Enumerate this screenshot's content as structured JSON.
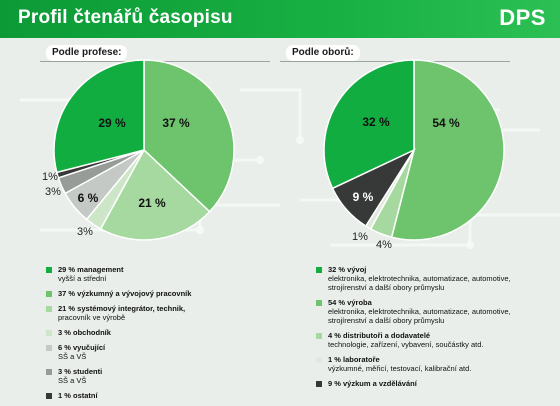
{
  "header": {
    "title": "Profil čtenářů časopisu",
    "brand": "DPS"
  },
  "colors": {
    "header_green": "#13a63c",
    "dark_green": "#12ad40",
    "mid_green": "#6dc46d",
    "light_green": "#a6d9a0",
    "pale_green": "#cde6c8",
    "light_gray": "#c4c9c5",
    "mid_gray": "#979c98",
    "dark_gray": "#5c605d",
    "darker_gray": "#363937"
  },
  "chart_data": [
    {
      "type": "pie",
      "title": "Podle profese:",
      "slices": [
        {
          "label_pct": "37 %",
          "value": 37,
          "color": "#6dc46d",
          "heading": "37 % výzkumný a vývojový pracovník",
          "desc": ""
        },
        {
          "label_pct": "21 %",
          "value": 21,
          "color": "#a6d9a0",
          "heading": "21 % systémový integrátor, technik,",
          "desc": "pracovník ve výrobě"
        },
        {
          "label_pct": "3%",
          "value": 3,
          "color": "#cde6c8",
          "heading": "3 % obchodník",
          "desc": ""
        },
        {
          "label_pct": "6 %",
          "value": 6,
          "color": "#c4c9c5",
          "heading": "6 % vyučující",
          "desc": "SŠ a VŠ"
        },
        {
          "label_pct": "3%",
          "value": 3,
          "color": "#979c98",
          "heading": "3 % studenti",
          "desc": "SŠ a VŠ"
        },
        {
          "label_pct": "1%",
          "value": 1,
          "color": "#363937",
          "heading": "1 % ostatní",
          "desc": ""
        },
        {
          "label_pct": "29 %",
          "value": 29,
          "color": "#12ad40",
          "heading": "29 % management",
          "desc": "vyšší a střední"
        }
      ],
      "legend_order": [
        6,
        0,
        1,
        2,
        3,
        4,
        5
      ]
    },
    {
      "type": "pie",
      "title": "Podle oborů:",
      "slices": [
        {
          "label_pct": "54 %",
          "value": 54,
          "color": "#6dc46d",
          "heading": "54 % výroba",
          "desc": "elektronika, elektrotechnika, automatizace, automotive, strojírenství a další obory průmyslu"
        },
        {
          "label_pct": "4%",
          "value": 4,
          "color": "#a6d9a0",
          "heading": "4 % distributoři a dodavatelé",
          "desc": "technologie, zařízení, vybavení, součástky atd."
        },
        {
          "label_pct": "1%",
          "value": 1,
          "color": "#dfe9dc",
          "heading": "1 % laboratoře",
          "desc": "výzkumné, měřicí, testovací, kalibrační atd."
        },
        {
          "label_pct": "9 %",
          "value": 9,
          "color": "#363937",
          "heading": "9 % výzkum a vzdělávání",
          "desc": ""
        },
        {
          "label_pct": "32 %",
          "value": 32,
          "color": "#12ad40",
          "heading": "32 % vývoj",
          "desc": "elektronika, elektrotechnika, automatizace, automotive, strojírenství a další obory průmyslu"
        }
      ],
      "legend_order": [
        4,
        0,
        1,
        2,
        3
      ]
    }
  ]
}
